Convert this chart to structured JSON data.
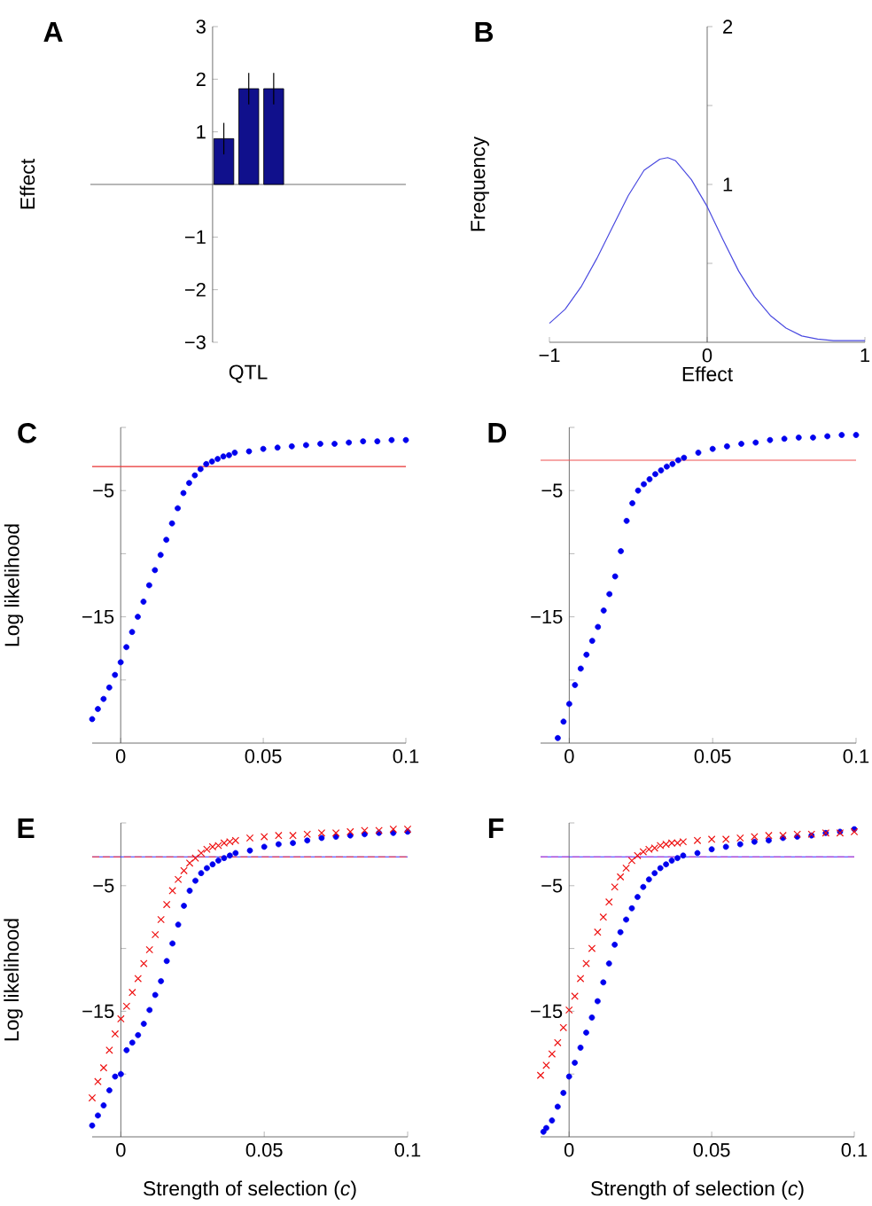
{
  "chart_data": [
    {
      "type": "bar",
      "title": "A",
      "xlabel": "QTL",
      "ylabel": "Effect",
      "categories": [
        null,
        null,
        null
      ],
      "values": [
        0.87,
        1.82,
        1.82
      ],
      "errors": [
        0.3,
        0.3,
        0.3
      ],
      "color": "#10108c",
      "ylim": [
        -3,
        3
      ],
      "yticks": [
        {
          "value": -3,
          "label": "−3"
        },
        {
          "value": -2,
          "label": "−2"
        },
        {
          "value": -1,
          "label": "−1"
        },
        1,
        2,
        3
      ]
    },
    {
      "type": "line",
      "title": "B",
      "xlabel": "Effect",
      "ylabel": "Frequency",
      "color": "#4a4ae0",
      "x": [
        -1,
        -0.9,
        -0.8,
        -0.7,
        -0.6,
        -0.5,
        -0.4,
        -0.3,
        -0.25,
        -0.2,
        -0.1,
        0,
        0.1,
        0.2,
        0.3,
        0.4,
        0.5,
        0.6,
        0.7,
        0.8,
        0.9,
        1
      ],
      "values": [
        0.12,
        0.21,
        0.35,
        0.53,
        0.73,
        0.93,
        1.09,
        1.16,
        1.17,
        1.15,
        1.03,
        0.86,
        0.65,
        0.45,
        0.29,
        0.17,
        0.09,
        0.04,
        0.02,
        0.01,
        0.01,
        0.01
      ],
      "xlim": [
        -1,
        1
      ],
      "ylim": [
        0,
        2
      ],
      "xticks": [
        {
          "value": -1,
          "label": "−1"
        },
        0,
        1
      ],
      "yticks": [
        {
          "value": 0.5,
          "label": null
        },
        1,
        {
          "value": 1.5,
          "label": null
        },
        2
      ]
    },
    {
      "type": "scatter",
      "title": "C",
      "ylabel": "Log likelihood",
      "xlim": [
        -0.01,
        0.1
      ],
      "ylim": [
        -25,
        0
      ],
      "xticks": [
        0,
        0.05,
        0.1
      ],
      "yticks": [
        {
          "value": -20,
          "label": null
        },
        {
          "value": -15,
          "label": "−15"
        },
        {
          "value": -10,
          "label": null
        },
        {
          "value": -5,
          "label": "−5"
        },
        {
          "value": 0,
          "label": null
        }
      ],
      "ref_lines": [
        {
          "axis": "y",
          "value": -3.1,
          "color": "#e83030"
        }
      ],
      "series": [
        {
          "color": "#0000ee",
          "marker": "circle",
          "x": [
            -0.01,
            -0.008,
            -0.006,
            -0.004,
            -0.002,
            0,
            0.002,
            0.004,
            0.006,
            0.008,
            0.01,
            0.012,
            0.014,
            0.016,
            0.018,
            0.02,
            0.022,
            0.024,
            0.026,
            0.028,
            0.03,
            0.032,
            0.034,
            0.036,
            0.038,
            0.04,
            0.045,
            0.05,
            0.055,
            0.06,
            0.065,
            0.07,
            0.075,
            0.08,
            0.085,
            0.09,
            0.095,
            0.1
          ],
          "values": [
            -23.1,
            -22.3,
            -21.5,
            -20.6,
            -19.6,
            -18.6,
            -17.4,
            -16.2,
            -15.0,
            -13.8,
            -12.5,
            -11.3,
            -10.1,
            -8.9,
            -7.6,
            -6.4,
            -5.2,
            -4.4,
            -3.8,
            -3.3,
            -2.9,
            -2.7,
            -2.5,
            -2.3,
            -2.2,
            -2.0,
            -1.9,
            -1.7,
            -1.6,
            -1.5,
            -1.4,
            -1.3,
            -1.3,
            -1.2,
            -1.1,
            -1.1,
            -1.0,
            -1.0
          ]
        }
      ]
    },
    {
      "type": "scatter",
      "title": "D",
      "xlim": [
        -0.01,
        0.1
      ],
      "ylim": [
        -25,
        0
      ],
      "xticks": [
        0,
        0.05,
        0.1
      ],
      "yticks": [
        {
          "value": -20,
          "label": null
        },
        {
          "value": -15,
          "label": "−15"
        },
        {
          "value": -10,
          "label": null
        },
        {
          "value": -5,
          "label": "−5"
        },
        {
          "value": 0,
          "label": null
        }
      ],
      "ref_lines": [
        {
          "axis": "y",
          "value": -2.6,
          "color": "#f05050"
        }
      ],
      "series": [
        {
          "color": "#0000ee",
          "marker": "circle",
          "x": [
            -0.004,
            -0.002,
            0,
            0.002,
            0.004,
            0.006,
            0.008,
            0.01,
            0.012,
            0.014,
            0.016,
            0.018,
            0.02,
            0.022,
            0.024,
            0.026,
            0.028,
            0.03,
            0.032,
            0.034,
            0.036,
            0.038,
            0.04,
            0.045,
            0.05,
            0.055,
            0.06,
            0.065,
            0.07,
            0.075,
            0.08,
            0.085,
            0.09,
            0.095,
            0.1
          ],
          "values": [
            -24.6,
            -23.3,
            -21.9,
            -20.4,
            -19.1,
            -18.0,
            -16.9,
            -15.8,
            -14.5,
            -13.2,
            -11.8,
            -9.8,
            -7.4,
            -6.0,
            -5.0,
            -4.5,
            -4.1,
            -3.7,
            -3.4,
            -3.1,
            -2.9,
            -2.6,
            -2.4,
            -2.0,
            -1.7,
            -1.5,
            -1.3,
            -1.2,
            -1.0,
            -0.9,
            -0.8,
            -0.8,
            -0.7,
            -0.6,
            -0.6
          ]
        }
      ]
    },
    {
      "type": "scatter",
      "title": "E",
      "xlabel": "Strength of selection (*c*)",
      "ylabel": "Log likelihood",
      "xlim": [
        -0.01,
        0.1
      ],
      "ylim": [
        -25,
        0
      ],
      "xticks": [
        0,
        0.05,
        0.1
      ],
      "yticks": [
        {
          "value": -20,
          "label": null
        },
        {
          "value": -15,
          "label": "−15"
        },
        {
          "value": -10,
          "label": null
        },
        {
          "value": -5,
          "label": "−5"
        },
        {
          "value": 0,
          "label": null
        }
      ],
      "ref_lines": [
        {
          "axis": "y",
          "value": -2.7,
          "color": "#3030ff"
        },
        {
          "axis": "y",
          "value": -2.7,
          "color": "#ff3030",
          "line_style": "dashed"
        }
      ],
      "series": [
        {
          "color": "#0000ee",
          "marker": "circle",
          "x": [
            -0.01,
            -0.008,
            -0.006,
            -0.004,
            -0.002,
            0,
            0.002,
            0.004,
            0.006,
            0.008,
            0.01,
            0.012,
            0.014,
            0.016,
            0.018,
            0.02,
            0.022,
            0.024,
            0.026,
            0.028,
            0.03,
            0.032,
            0.034,
            0.036,
            0.038,
            0.04,
            0.045,
            0.05,
            0.055,
            0.06,
            0.065,
            0.07,
            0.075,
            0.08,
            0.085,
            0.09,
            0.095,
            0.1
          ],
          "values": [
            -24.1,
            -23.3,
            -22.5,
            -21.3,
            -20.2,
            -20.0,
            -18.1,
            -17.5,
            -16.9,
            -16.0,
            -14.9,
            -13.7,
            -12.6,
            -11.0,
            -9.6,
            -8.1,
            -6.6,
            -5.4,
            -4.6,
            -4.0,
            -3.6,
            -3.3,
            -3.0,
            -2.8,
            -2.6,
            -2.4,
            -2.2,
            -1.9,
            -1.7,
            -1.6,
            -1.4,
            -1.2,
            -1.1,
            -1.0,
            -0.9,
            -0.8,
            -0.8,
            -0.7
          ]
        },
        {
          "color": "#ee1111",
          "marker": "cross",
          "x": [
            -0.01,
            -0.008,
            -0.006,
            -0.004,
            -0.002,
            0,
            0.002,
            0.004,
            0.006,
            0.008,
            0.01,
            0.012,
            0.014,
            0.016,
            0.018,
            0.02,
            0.022,
            0.024,
            0.026,
            0.028,
            0.03,
            0.032,
            0.034,
            0.036,
            0.038,
            0.04,
            0.045,
            0.05,
            0.055,
            0.06,
            0.065,
            0.07,
            0.075,
            0.08,
            0.085,
            0.09,
            0.095,
            0.1
          ],
          "values": [
            -21.9,
            -20.6,
            -19.5,
            -18.1,
            -16.8,
            -15.6,
            -14.6,
            -13.5,
            -12.4,
            -11.2,
            -10.1,
            -8.9,
            -7.7,
            -6.5,
            -5.4,
            -4.5,
            -3.8,
            -3.2,
            -2.8,
            -2.4,
            -2.1,
            -1.9,
            -1.8,
            -1.6,
            -1.5,
            -1.4,
            -1.2,
            -1.1,
            -1.0,
            -1.0,
            -0.9,
            -0.8,
            -0.8,
            -0.7,
            -0.6,
            -0.6,
            -0.5,
            -0.5
          ]
        }
      ]
    },
    {
      "type": "scatter",
      "title": "F",
      "xlabel": "Strength of selection (*c*)",
      "xlim": [
        -0.01,
        0.1
      ],
      "ylim": [
        -25,
        0
      ],
      "xticks": [
        0,
        0.05,
        0.1
      ],
      "yticks": [
        {
          "value": -20,
          "label": null
        },
        {
          "value": -15,
          "label": "−15"
        },
        {
          "value": -10,
          "label": null
        },
        {
          "value": -5,
          "label": "−5"
        },
        {
          "value": 0,
          "label": null
        }
      ],
      "ref_lines": [
        {
          "axis": "y",
          "value": -2.7,
          "color": "#3030ff"
        },
        {
          "axis": "y",
          "value": -2.7,
          "color": "#c83cc8",
          "line_style": "dashed"
        }
      ],
      "series": [
        {
          "color": "#0000ee",
          "marker": "circle",
          "x": [
            -0.009,
            -0.008,
            -0.006,
            -0.004,
            -0.002,
            0,
            0.002,
            0.004,
            0.006,
            0.008,
            0.01,
            0.012,
            0.014,
            0.016,
            0.018,
            0.02,
            0.022,
            0.024,
            0.026,
            0.028,
            0.03,
            0.032,
            0.034,
            0.036,
            0.038,
            0.04,
            0.045,
            0.05,
            0.055,
            0.06,
            0.065,
            0.07,
            0.075,
            0.08,
            0.085,
            0.09,
            0.095,
            0.1
          ],
          "values": [
            -24.6,
            -24.3,
            -23.7,
            -22.6,
            -21.5,
            -20.2,
            -19.1,
            -17.9,
            -16.7,
            -15.5,
            -14.2,
            -12.7,
            -11.2,
            -9.7,
            -8.7,
            -7.7,
            -6.8,
            -5.9,
            -5.1,
            -4.5,
            -4.0,
            -3.6,
            -3.3,
            -3.0,
            -2.8,
            -2.6,
            -2.4,
            -2.1,
            -1.9,
            -1.7,
            -1.5,
            -1.4,
            -1.2,
            -1.1,
            -1.0,
            -0.8,
            -0.7,
            -0.5
          ]
        },
        {
          "color": "#ee1111",
          "marker": "cross",
          "x": [
            -0.01,
            -0.008,
            -0.006,
            -0.004,
            -0.002,
            0,
            0.002,
            0.004,
            0.006,
            0.008,
            0.01,
            0.012,
            0.014,
            0.016,
            0.018,
            0.02,
            0.022,
            0.024,
            0.026,
            0.028,
            0.03,
            0.032,
            0.034,
            0.036,
            0.038,
            0.04,
            0.045,
            0.05,
            0.055,
            0.06,
            0.065,
            0.07,
            0.075,
            0.08,
            0.085,
            0.09,
            0.095,
            0.1
          ],
          "values": [
            -20.1,
            -19.3,
            -18.4,
            -17.5,
            -16.3,
            -14.9,
            -13.8,
            -12.4,
            -11.2,
            -10.0,
            -8.7,
            -7.5,
            -6.3,
            -5.1,
            -4.3,
            -3.6,
            -3.0,
            -2.6,
            -2.3,
            -2.1,
            -2.0,
            -1.8,
            -1.7,
            -1.6,
            -1.6,
            -1.5,
            -1.4,
            -1.3,
            -1.3,
            -1.2,
            -1.1,
            -1.0,
            -1.0,
            -0.9,
            -0.9,
            -0.8,
            -0.8,
            -0.7
          ]
        }
      ]
    }
  ]
}
